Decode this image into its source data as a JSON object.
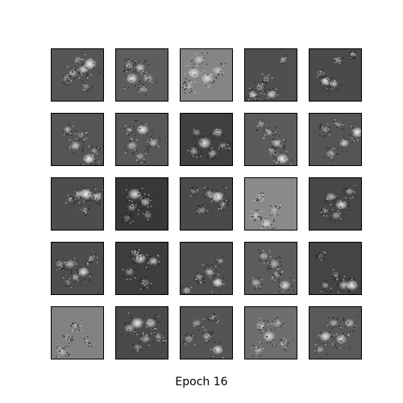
{
  "caption": "Epoch 16",
  "grid": {
    "rows": 5,
    "cols": 5
  },
  "colors": {
    "background": "#ffffff",
    "frame": "#000000",
    "pixels": "grayscale"
  },
  "tiles": [
    {
      "bg": "#555555",
      "blobs": [
        [
          0.72,
          0.28,
          0.13,
          0.95
        ],
        [
          0.6,
          0.38,
          0.1,
          0.8
        ],
        [
          0.4,
          0.45,
          0.09,
          0.55
        ],
        [
          0.28,
          0.55,
          0.08,
          0.45
        ],
        [
          0.65,
          0.7,
          0.07,
          0.4
        ],
        [
          0.5,
          0.2,
          0.08,
          0.45
        ]
      ]
    },
    {
      "bg": "#5d5d5d",
      "blobs": [
        [
          0.3,
          0.55,
          0.12,
          0.85
        ],
        [
          0.45,
          0.35,
          0.1,
          0.7
        ],
        [
          0.6,
          0.55,
          0.1,
          0.6
        ],
        [
          0.5,
          0.75,
          0.08,
          0.45
        ],
        [
          0.25,
          0.3,
          0.08,
          0.5
        ]
      ]
    },
    {
      "bg": "#858585",
      "blobs": [
        [
          0.25,
          0.45,
          0.12,
          0.75
        ],
        [
          0.5,
          0.55,
          0.12,
          0.7
        ],
        [
          0.35,
          0.2,
          0.1,
          0.55
        ],
        [
          0.7,
          0.4,
          0.1,
          0.5
        ],
        [
          0.15,
          0.7,
          0.08,
          0.45
        ]
      ]
    },
    {
      "bg": "#4f4f4f",
      "blobs": [
        [
          0.15,
          0.85,
          0.09,
          0.8
        ],
        [
          0.5,
          0.85,
          0.1,
          0.75
        ],
        [
          0.28,
          0.72,
          0.08,
          0.5
        ],
        [
          0.72,
          0.2,
          0.07,
          0.5
        ],
        [
          0.4,
          0.55,
          0.07,
          0.35
        ]
      ]
    },
    {
      "bg": "#4a4a4a",
      "blobs": [
        [
          0.3,
          0.6,
          0.1,
          0.9
        ],
        [
          0.45,
          0.65,
          0.09,
          0.75
        ],
        [
          0.55,
          0.2,
          0.07,
          0.6
        ],
        [
          0.2,
          0.45,
          0.07,
          0.4
        ],
        [
          0.8,
          0.1,
          0.05,
          0.5
        ]
      ]
    },
    {
      "bg": "#555555",
      "blobs": [
        [
          0.7,
          0.85,
          0.12,
          0.95
        ],
        [
          0.45,
          0.6,
          0.1,
          0.7
        ],
        [
          0.3,
          0.3,
          0.08,
          0.55
        ],
        [
          0.8,
          0.7,
          0.07,
          0.45
        ],
        [
          0.55,
          0.4,
          0.07,
          0.4
        ]
      ]
    },
    {
      "bg": "#575757",
      "blobs": [
        [
          0.5,
          0.3,
          0.12,
          0.9
        ],
        [
          0.3,
          0.6,
          0.1,
          0.6
        ],
        [
          0.7,
          0.55,
          0.09,
          0.65
        ],
        [
          0.45,
          0.8,
          0.08,
          0.5
        ],
        [
          0.25,
          0.3,
          0.07,
          0.45
        ]
      ]
    },
    {
      "bg": "#404040",
      "blobs": [
        [
          0.45,
          0.55,
          0.13,
          0.85
        ],
        [
          0.7,
          0.35,
          0.1,
          0.65
        ],
        [
          0.25,
          0.7,
          0.1,
          0.55
        ],
        [
          0.6,
          0.75,
          0.09,
          0.6
        ],
        [
          0.8,
          0.6,
          0.08,
          0.5
        ],
        [
          0.3,
          0.35,
          0.08,
          0.45
        ]
      ]
    },
    {
      "bg": "#5b5b5b",
      "blobs": [
        [
          0.7,
          0.85,
          0.12,
          0.95
        ],
        [
          0.6,
          0.55,
          0.1,
          0.7
        ],
        [
          0.45,
          0.35,
          0.08,
          0.5
        ],
        [
          0.3,
          0.2,
          0.07,
          0.4
        ],
        [
          0.5,
          0.7,
          0.07,
          0.45
        ]
      ]
    },
    {
      "bg": "#555555",
      "blobs": [
        [
          0.9,
          0.35,
          0.12,
          0.95
        ],
        [
          0.65,
          0.55,
          0.1,
          0.75
        ],
        [
          0.4,
          0.75,
          0.09,
          0.6
        ],
        [
          0.3,
          0.3,
          0.08,
          0.4
        ],
        [
          0.55,
          0.2,
          0.07,
          0.45
        ]
      ]
    },
    {
      "bg": "#4d4d4d",
      "blobs": [
        [
          0.65,
          0.3,
          0.13,
          0.95
        ],
        [
          0.85,
          0.35,
          0.1,
          0.8
        ],
        [
          0.5,
          0.3,
          0.09,
          0.6
        ],
        [
          0.62,
          0.6,
          0.06,
          0.5
        ],
        [
          0.35,
          0.4,
          0.07,
          0.35
        ]
      ]
    },
    {
      "bg": "#383838",
      "blobs": [
        [
          0.35,
          0.3,
          0.13,
          0.85
        ],
        [
          0.55,
          0.45,
          0.1,
          0.65
        ],
        [
          0.3,
          0.55,
          0.09,
          0.5
        ],
        [
          0.6,
          0.7,
          0.08,
          0.4
        ],
        [
          0.2,
          0.75,
          0.07,
          0.35
        ]
      ]
    },
    {
      "bg": "#4a4a4a",
      "blobs": [
        [
          0.7,
          0.35,
          0.13,
          0.95
        ],
        [
          0.55,
          0.3,
          0.09,
          0.6
        ],
        [
          0.4,
          0.6,
          0.08,
          0.45
        ],
        [
          0.8,
          0.5,
          0.07,
          0.5
        ],
        [
          0.25,
          0.25,
          0.06,
          0.35
        ]
      ]
    },
    {
      "bg": "#8a8a8a",
      "blobs": [
        [
          0.4,
          0.85,
          0.1,
          0.7
        ],
        [
          0.2,
          0.7,
          0.08,
          0.5
        ],
        [
          0.55,
          0.6,
          0.07,
          0.4
        ],
        [
          0.25,
          0.35,
          0.06,
          0.35
        ]
      ]
    },
    {
      "bg": "#474747",
      "blobs": [
        [
          0.6,
          0.5,
          0.12,
          0.85
        ],
        [
          0.4,
          0.35,
          0.1,
          0.6
        ],
        [
          0.75,
          0.25,
          0.08,
          0.55
        ],
        [
          0.5,
          0.7,
          0.09,
          0.5
        ],
        [
          0.3,
          0.6,
          0.07,
          0.4
        ]
      ]
    },
    {
      "bg": "#4d4d4d",
      "blobs": [
        [
          0.6,
          0.55,
          0.11,
          0.85
        ],
        [
          0.35,
          0.4,
          0.1,
          0.6
        ],
        [
          0.15,
          0.4,
          0.08,
          0.5
        ],
        [
          0.45,
          0.65,
          0.08,
          0.55
        ],
        [
          0.75,
          0.3,
          0.07,
          0.4
        ],
        [
          0.3,
          0.75,
          0.07,
          0.4
        ]
      ]
    },
    {
      "bg": "#3e3e3e",
      "blobs": [
        [
          0.45,
          0.3,
          0.12,
          0.85
        ],
        [
          0.7,
          0.35,
          0.1,
          0.7
        ],
        [
          0.25,
          0.55,
          0.09,
          0.5
        ],
        [
          0.55,
          0.75,
          0.08,
          0.45
        ],
        [
          0.35,
          0.2,
          0.07,
          0.4
        ]
      ]
    },
    {
      "bg": "#4f4f4f",
      "blobs": [
        [
          0.7,
          0.75,
          0.11,
          0.9
        ],
        [
          0.55,
          0.55,
          0.1,
          0.65
        ],
        [
          0.12,
          0.9,
          0.08,
          0.7
        ],
        [
          0.35,
          0.65,
          0.08,
          0.45
        ],
        [
          0.75,
          0.35,
          0.07,
          0.4
        ]
      ]
    },
    {
      "bg": "#5c5c5c",
      "blobs": [
        [
          0.75,
          0.8,
          0.11,
          0.85
        ],
        [
          0.55,
          0.4,
          0.1,
          0.6
        ],
        [
          0.35,
          0.25,
          0.09,
          0.55
        ],
        [
          0.2,
          0.75,
          0.09,
          0.6
        ],
        [
          0.6,
          0.6,
          0.07,
          0.45
        ]
      ]
    },
    {
      "bg": "#444444",
      "blobs": [
        [
          0.8,
          0.8,
          0.12,
          0.95
        ],
        [
          0.65,
          0.8,
          0.1,
          0.7
        ],
        [
          0.3,
          0.8,
          0.08,
          0.5
        ],
        [
          0.5,
          0.6,
          0.07,
          0.4
        ],
        [
          0.2,
          0.25,
          0.06,
          0.35
        ]
      ]
    },
    {
      "bg": "#828282",
      "blobs": [
        [
          0.2,
          0.85,
          0.08,
          0.45
        ],
        [
          0.45,
          0.35,
          0.07,
          0.4
        ],
        [
          0.65,
          0.65,
          0.07,
          0.35
        ],
        [
          0.3,
          0.6,
          0.06,
          0.3
        ]
      ]
    },
    {
      "bg": "#4a4a4a",
      "blobs": [
        [
          0.4,
          0.3,
          0.13,
          0.9
        ],
        [
          0.65,
          0.3,
          0.11,
          0.75
        ],
        [
          0.25,
          0.4,
          0.1,
          0.6
        ],
        [
          0.55,
          0.6,
          0.09,
          0.55
        ],
        [
          0.8,
          0.55,
          0.08,
          0.5
        ],
        [
          0.4,
          0.75,
          0.07,
          0.4
        ]
      ]
    },
    {
      "bg": "#545454",
      "blobs": [
        [
          0.7,
          0.8,
          0.11,
          0.85
        ],
        [
          0.5,
          0.55,
          0.09,
          0.6
        ],
        [
          0.3,
          0.3,
          0.09,
          0.5
        ],
        [
          0.15,
          0.6,
          0.08,
          0.45
        ],
        [
          0.6,
          0.2,
          0.07,
          0.4
        ]
      ]
    },
    {
      "bg": "#6e6e6e",
      "blobs": [
        [
          0.45,
          0.55,
          0.12,
          0.8
        ],
        [
          0.3,
          0.35,
          0.1,
          0.6
        ],
        [
          0.6,
          0.3,
          0.09,
          0.55
        ],
        [
          0.25,
          0.8,
          0.09,
          0.55
        ],
        [
          0.7,
          0.7,
          0.07,
          0.4
        ]
      ]
    },
    {
      "bg": "#595959",
      "blobs": [
        [
          0.3,
          0.55,
          0.12,
          0.85
        ],
        [
          0.6,
          0.6,
          0.11,
          0.75
        ],
        [
          0.75,
          0.3,
          0.1,
          0.65
        ],
        [
          0.45,
          0.3,
          0.09,
          0.5
        ],
        [
          0.2,
          0.8,
          0.08,
          0.5
        ]
      ]
    }
  ]
}
